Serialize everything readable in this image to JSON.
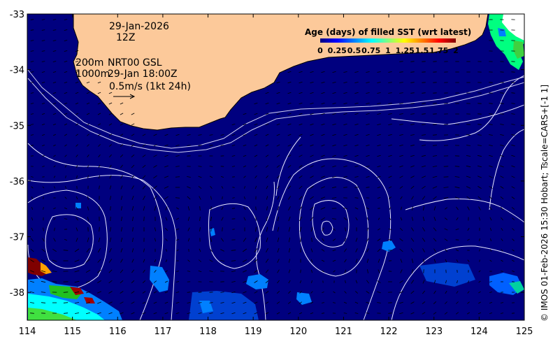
{
  "map": {
    "lon_range": [
      114,
      125
    ],
    "lat_range": [
      -38.5,
      -33
    ],
    "x_ticks": [
      "114",
      "115",
      "116",
      "117",
      "118",
      "119",
      "120",
      "121",
      "122",
      "123",
      "124",
      "125"
    ],
    "y_ticks": [
      "-33",
      "-34",
      "-35",
      "-36",
      "-37",
      "-38"
    ],
    "colors": {
      "ocean": "#00007f",
      "land": "#fcc99a",
      "contour": "#e8e8ff",
      "vector": "#000000"
    }
  },
  "annotations": {
    "date": "29-Jan-2026",
    "hour": "12Z",
    "depth_200": "200m",
    "depth_1000": "1000m",
    "product": "NRT00 GSL",
    "valid_time": "29-Jan 18:00Z",
    "scale_label": "0.5m/s (1kt 24h)"
  },
  "colorbar": {
    "title": "Age (days) of filled SST (wrt latest)",
    "ticks": [
      "0",
      "0.25",
      "0.5",
      "0.75",
      "1",
      "1.25",
      "1.5",
      "1.75",
      "2"
    ],
    "colors": [
      "#00007f",
      "#0000ff",
      "#0080ff",
      "#00ffff",
      "#80ff80",
      "#ffff00",
      "#ff8000",
      "#ff0000",
      "#7f0000"
    ]
  },
  "credit": "© IMOS 01-Feb-2026 15:30 Hobart; Tscale=CARS+[-1 1]"
}
